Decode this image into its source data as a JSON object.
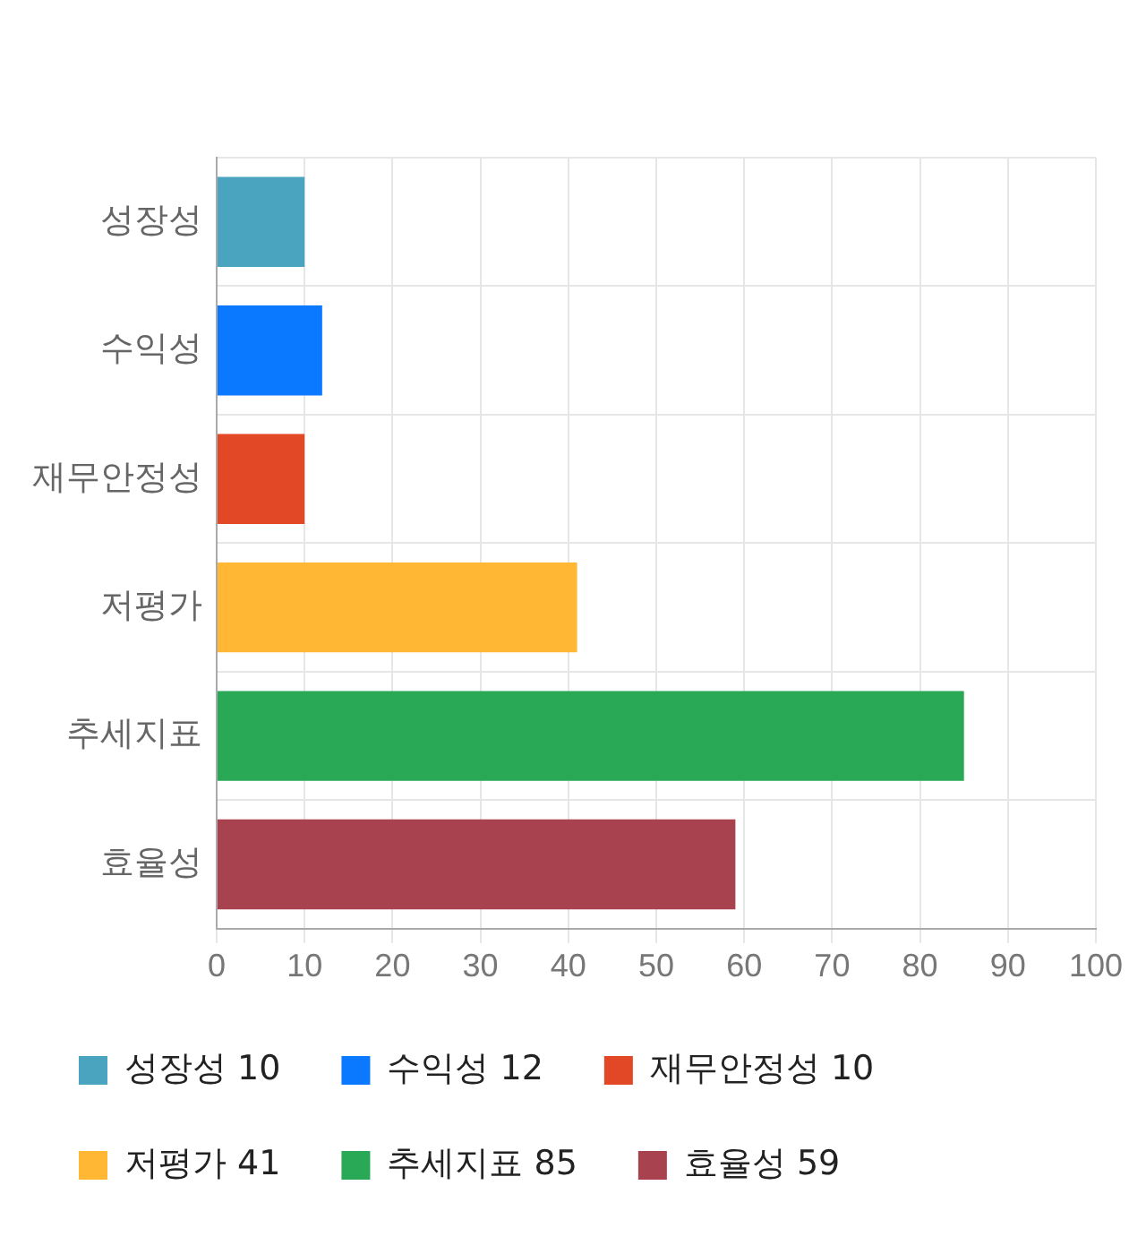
{
  "chart_data": {
    "type": "bar",
    "orientation": "horizontal",
    "categories": [
      "성장성",
      "수익성",
      "재무안정성",
      "저평가",
      "추세지표",
      "효율성"
    ],
    "series": [
      {
        "name": "성장성 10",
        "color": "#4aa3bf",
        "values": [
          10,
          null,
          null,
          null,
          null,
          null
        ]
      },
      {
        "name": "수익성 12",
        "color": "#0a79ff",
        "values": [
          null,
          12,
          null,
          null,
          null,
          null
        ]
      },
      {
        "name": "재무안정성 10",
        "color": "#e34826",
        "values": [
          null,
          null,
          10,
          null,
          null,
          null
        ]
      },
      {
        "name": "저평가 41",
        "color": "#ffb734",
        "values": [
          null,
          null,
          null,
          41,
          null,
          null
        ]
      },
      {
        "name": "추세지표 85",
        "color": "#29a855",
        "values": [
          null,
          null,
          null,
          null,
          85,
          null
        ]
      },
      {
        "name": "효율성 59",
        "color": "#a8424f",
        "values": [
          null,
          null,
          null,
          null,
          null,
          59
        ]
      }
    ],
    "xlim": [
      0,
      100
    ],
    "xticks": [
      0,
      10,
      20,
      30,
      40,
      50,
      60,
      70,
      80,
      90,
      100
    ],
    "grid": true,
    "legend": "bottom"
  }
}
